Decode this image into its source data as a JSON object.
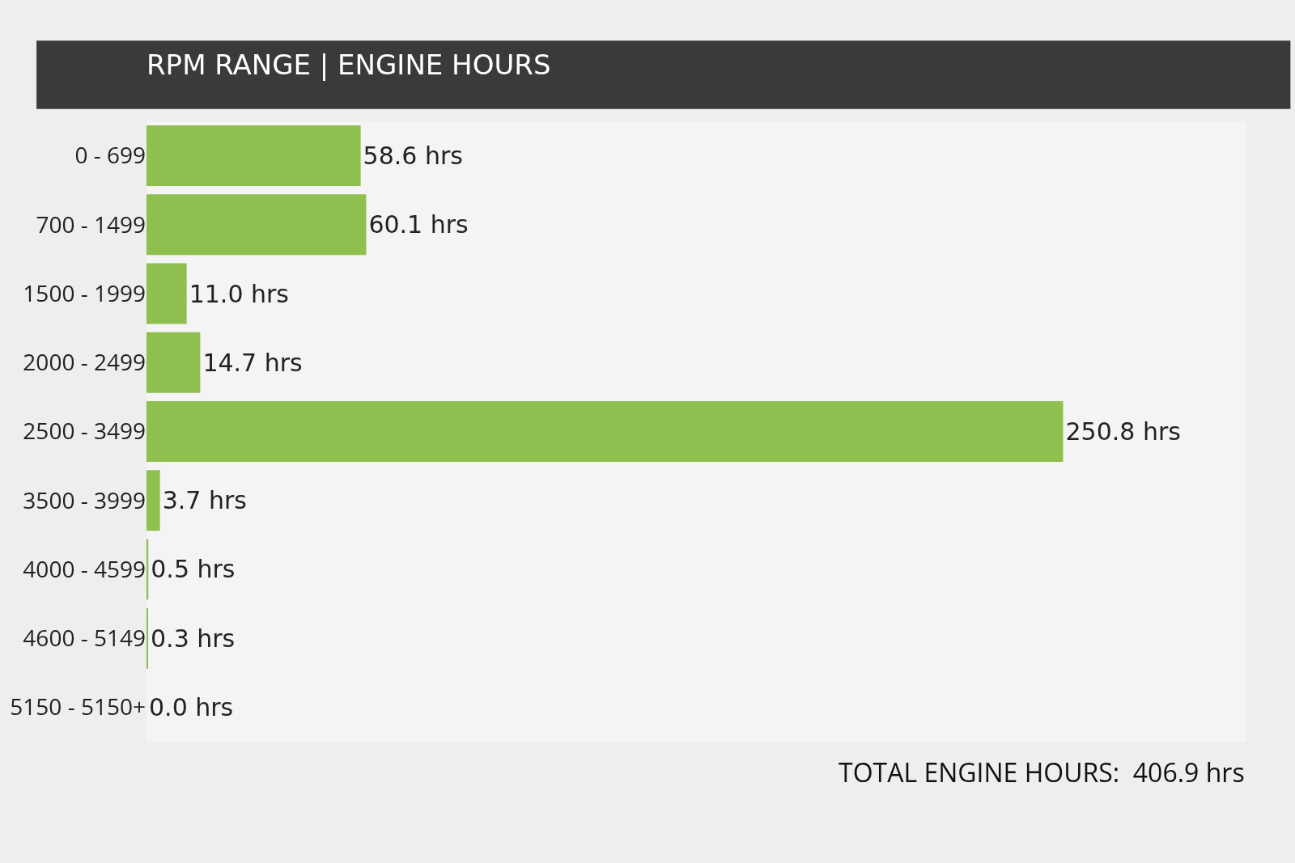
{
  "chart_data": {
    "type": "bar",
    "orientation": "horizontal",
    "title": "RPM RANGE | ENGINE HOURS",
    "categories": [
      "0 - 699",
      "700 - 1499",
      "1500 - 1999",
      "2000 - 2499",
      "2500 - 3499",
      "3500 - 3999",
      "4000 - 4599",
      "4600 - 5149",
      "5150 - 5150+"
    ],
    "values": [
      58.6,
      60.1,
      11.0,
      14.7,
      250.8,
      3.7,
      0.5,
      0.3,
      0.0
    ],
    "value_labels": [
      "58.6 hrs",
      "60.1 hrs",
      "11.0 hrs",
      "14.7 hrs",
      "250.8 hrs",
      "3.7 hrs",
      "0.5 hrs",
      "0.3 hrs",
      "0.0 hrs"
    ],
    "color": "#8fbf4f",
    "annotations": [
      "TOTAL ENGINE HOURS:  406.9 hrs"
    ],
    "legend": false
  }
}
